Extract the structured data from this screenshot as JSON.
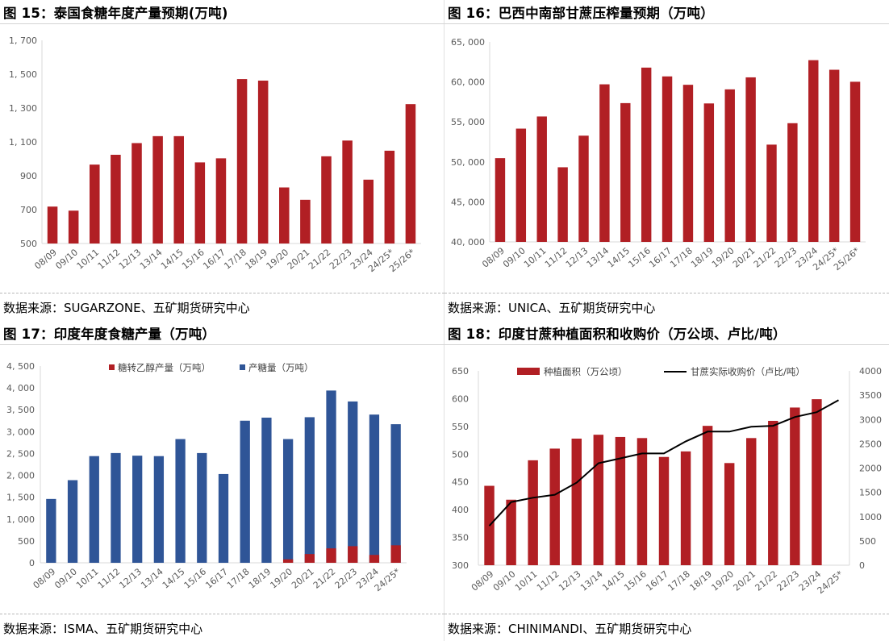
{
  "colors": {
    "red": "#b11f24",
    "blue": "#2f5597",
    "black": "#000000",
    "axis": "#d9d9d9",
    "tick": "#595959"
  },
  "panels": {
    "p15": {
      "title": "图 15：泰国食糖年度产量预期(万吨)",
      "source": "数据来源：SUGARZONE、五矿期货研究中心"
    },
    "p16": {
      "title": "图 16：巴西中南部甘蔗压榨量预期（万吨）",
      "source": "数据来源：UNICA、五矿期货研究中心"
    },
    "p17": {
      "title": "图 17：印度年度食糖产量（万吨）",
      "source": "数据来源：ISMA、五矿期货研究中心"
    },
    "p18": {
      "title": "图 18：印度甘蔗种植面积和收购价（万公顷、卢比/吨）",
      "source": "数据来源：CHINIMANDI、五矿期货研究中心"
    }
  },
  "chart_data": [
    {
      "id": "c15",
      "type": "bar",
      "title": "泰国食糖年度产量预期(万吨)",
      "categories": [
        "08/09",
        "09/10",
        "10/11",
        "11/12",
        "12/13",
        "13/14",
        "14/15",
        "15/16",
        "16/17",
        "17/18",
        "18/19",
        "19/20",
        "20/21",
        "21/22",
        "22/23",
        "23/24",
        "24/25*",
        "25/26*"
      ],
      "series": [
        {
          "name": "产量",
          "color": "#b11f24",
          "values": [
            718,
            694,
            966,
            1024,
            1093,
            1134,
            1134,
            979,
            1003,
            1471,
            1462,
            831,
            758,
            1015,
            1108,
            877,
            1048,
            1323
          ]
        }
      ],
      "ylim": [
        500,
        1700
      ],
      "yticks": [
        500,
        700,
        900,
        1100,
        1300,
        1500,
        1700
      ],
      "ytick_labels": [
        "500",
        "700",
        "900",
        "1, 100",
        "1, 300",
        "1, 500",
        "1, 700"
      ]
    },
    {
      "id": "c16",
      "type": "bar",
      "title": "巴西中南部甘蔗压榨量预期（万吨）",
      "categories": [
        "08/09",
        "09/10",
        "10/11",
        "11/12",
        "12/13",
        "13/14",
        "14/15",
        "15/16",
        "16/17",
        "17/18",
        "18/19",
        "19/20",
        "20/21",
        "21/22",
        "22/23",
        "23/24",
        "24/25*",
        "25/26*"
      ],
      "series": [
        {
          "name": "压榨量",
          "color": "#b11f24",
          "values": [
            50470,
            54160,
            55680,
            49330,
            53280,
            59700,
            57350,
            61790,
            60690,
            59640,
            57310,
            59070,
            60570,
            52160,
            54840,
            62720,
            61520,
            60020
          ]
        }
      ],
      "ylim": [
        40000,
        65000
      ],
      "yticks": [
        40000,
        45000,
        50000,
        55000,
        60000,
        65000
      ],
      "ytick_labels": [
        "40, 000",
        "45, 000",
        "50, 000",
        "55, 000",
        "60, 000",
        "65, 000"
      ]
    },
    {
      "id": "c17",
      "type": "bar",
      "stacked_overlay": true,
      "title": "印度年度食糖产量（万吨）",
      "categories": [
        "08/09",
        "09/10",
        "10/11",
        "11/12",
        "12/13",
        "13/14",
        "14/15",
        "15/16",
        "16/17",
        "17/18",
        "18/19",
        "19/20",
        "20/21",
        "21/22",
        "22/23",
        "23/24",
        "24/25*"
      ],
      "series": [
        {
          "name": "糖转乙醇产量（万吨）",
          "color": "#b11f24",
          "values": [
            0,
            0,
            0,
            0,
            0,
            0,
            0,
            0,
            0,
            0,
            0,
            80,
            200,
            330,
            380,
            180,
            400
          ]
        },
        {
          "name": "产糖量（万吨）",
          "color": "#2f5597",
          "values": [
            1460,
            1890,
            2440,
            2510,
            2450,
            2440,
            2830,
            2510,
            2030,
            3250,
            3320,
            2830,
            3330,
            3940,
            3690,
            3390,
            3170
          ]
        }
      ],
      "ylim": [
        0,
        4500
      ],
      "yticks": [
        0,
        500,
        1000,
        1500,
        2000,
        2500,
        3000,
        3500,
        4000,
        4500
      ],
      "ytick_labels": [
        "0",
        "500",
        "1, 000",
        "1, 500",
        "2, 000",
        "2, 500",
        "3, 000",
        "3, 500",
        "4, 000",
        "4, 500"
      ],
      "legend": "top-center"
    },
    {
      "id": "c18",
      "type": "bar+line",
      "title": "印度甘蔗种植面积和收购价（万公顷、卢比/吨）",
      "categories": [
        "08/09",
        "09/10",
        "10/11",
        "11/12",
        "12/13",
        "13/14",
        "14/15",
        "15/16",
        "16/17",
        "17/18",
        "18/19",
        "19/20",
        "20/21",
        "21/22",
        "22/23",
        "23/24",
        "24/25*"
      ],
      "series": [
        {
          "name": "种植面积（万公顷）",
          "type": "bar",
          "axis": "left",
          "color": "#b11f24",
          "values": [
            443,
            418,
            489,
            510,
            528,
            535,
            531,
            529,
            495,
            505,
            551,
            484,
            529,
            560,
            584,
            599,
            null
          ]
        },
        {
          "name": "甘蔗实际收购价（卢比/吨）",
          "type": "line",
          "axis": "right",
          "color": "#000000",
          "values": [
            810,
            1300,
            1390,
            1450,
            1700,
            2100,
            2200,
            2300,
            2300,
            2550,
            2750,
            2750,
            2850,
            2870,
            3050,
            3150,
            3400
          ]
        }
      ],
      "ylim_left": [
        300,
        650
      ],
      "yticks_left": [
        300,
        350,
        400,
        450,
        500,
        550,
        600,
        650
      ],
      "ylim_right": [
        0,
        4000
      ],
      "yticks_right": [
        0,
        500,
        1000,
        1500,
        2000,
        2500,
        3000,
        3500,
        4000
      ],
      "legend": "top-center"
    }
  ]
}
